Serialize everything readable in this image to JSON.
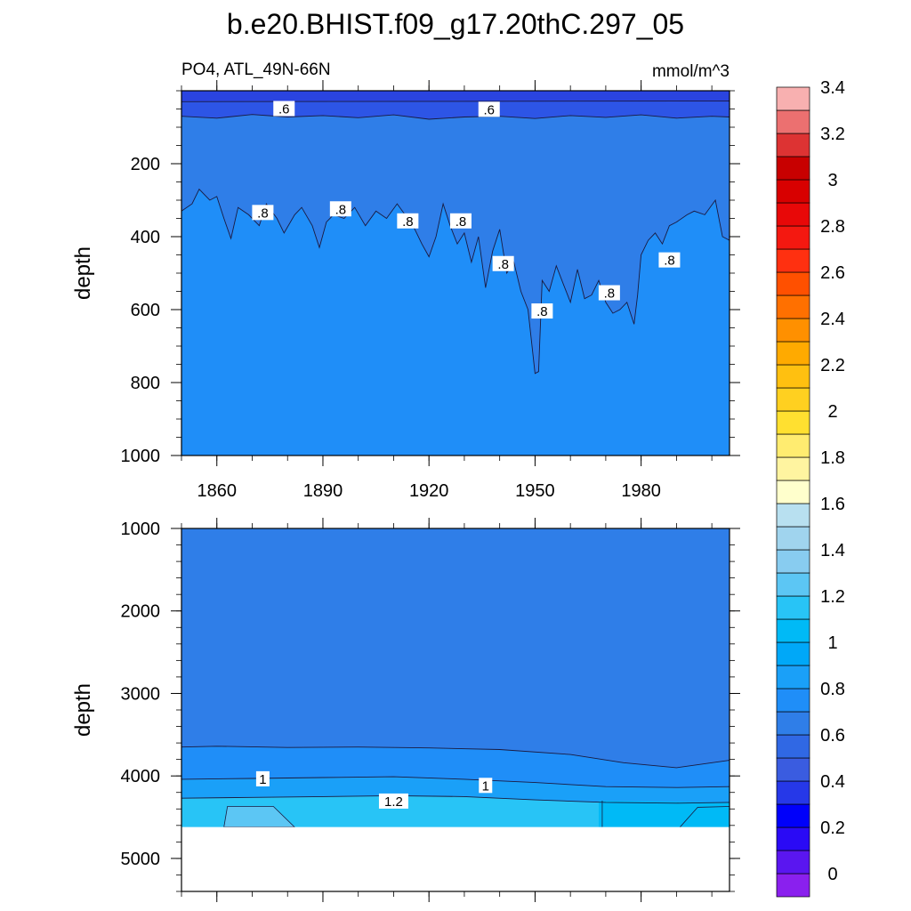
{
  "title": "b.e20.BHIST.f09_g17.20thC.297_05",
  "chart_data": {
    "type": "contour",
    "variable_label": "PO4, ATL_49N-66N",
    "units": "mmol/m^3",
    "ylabel": "depth",
    "x_ticks": [
      1860,
      1890,
      1920,
      1950,
      1980
    ],
    "xlim": [
      1850,
      2005
    ],
    "top_panel": {
      "ylim": [
        0,
        1000
      ],
      "y_ticks": [
        "200",
        "400",
        "600",
        "800",
        "1000"
      ],
      "contour_06_depths": [
        [
          1850,
          70
        ],
        [
          1860,
          75
        ],
        [
          1870,
          65
        ],
        [
          1880,
          72
        ],
        [
          1890,
          68
        ],
        [
          1900,
          74
        ],
        [
          1910,
          66
        ],
        [
          1920,
          78
        ],
        [
          1930,
          72
        ],
        [
          1940,
          70
        ],
        [
          1950,
          76
        ],
        [
          1960,
          68
        ],
        [
          1970,
          73
        ],
        [
          1980,
          66
        ],
        [
          1990,
          75
        ],
        [
          2000,
          70
        ],
        [
          2005,
          72
        ]
      ],
      "contour_08_depths": [
        [
          1850,
          330
        ],
        [
          1853,
          310
        ],
        [
          1855,
          270
        ],
        [
          1858,
          300
        ],
        [
          1860,
          290
        ],
        [
          1862,
          350
        ],
        [
          1864,
          405
        ],
        [
          1866,
          320
        ],
        [
          1869,
          340
        ],
        [
          1872,
          370
        ],
        [
          1874,
          310
        ],
        [
          1877,
          350
        ],
        [
          1879,
          390
        ],
        [
          1882,
          340
        ],
        [
          1884,
          320
        ],
        [
          1887,
          370
        ],
        [
          1889,
          430
        ],
        [
          1891,
          360
        ],
        [
          1893,
          340
        ],
        [
          1896,
          350
        ],
        [
          1899,
          320
        ],
        [
          1902,
          370
        ],
        [
          1905,
          330
        ],
        [
          1908,
          350
        ],
        [
          1911,
          310
        ],
        [
          1914,
          350
        ],
        [
          1916,
          380
        ],
        [
          1918,
          420
        ],
        [
          1920,
          455
        ],
        [
          1922,
          400
        ],
        [
          1924,
          310
        ],
        [
          1926,
          370
        ],
        [
          1928,
          420
        ],
        [
          1930,
          390
        ],
        [
          1932,
          470
        ],
        [
          1934,
          400
        ],
        [
          1936,
          540
        ],
        [
          1938,
          440
        ],
        [
          1940,
          380
        ],
        [
          1942,
          500
        ],
        [
          1944,
          470
        ],
        [
          1946,
          550
        ],
        [
          1948,
          600
        ],
        [
          1950,
          775
        ],
        [
          1951,
          770
        ],
        [
          1952,
          520
        ],
        [
          1954,
          550
        ],
        [
          1956,
          480
        ],
        [
          1958,
          530
        ],
        [
          1960,
          580
        ],
        [
          1962,
          490
        ],
        [
          1964,
          570
        ],
        [
          1966,
          560
        ],
        [
          1968,
          520
        ],
        [
          1970,
          580
        ],
        [
          1972,
          610
        ],
        [
          1974,
          600
        ],
        [
          1976,
          580
        ],
        [
          1978,
          640
        ],
        [
          1979,
          560
        ],
        [
          1980,
          450
        ],
        [
          1982,
          410
        ],
        [
          1984,
          390
        ],
        [
          1986,
          420
        ],
        [
          1988,
          370
        ],
        [
          1990,
          360
        ],
        [
          1993,
          340
        ],
        [
          1995,
          330
        ],
        [
          1998,
          340
        ],
        [
          2001,
          300
        ],
        [
          2003,
          400
        ],
        [
          2005,
          410
        ]
      ],
      "contour_labels": [
        {
          "text": ".6",
          "x": 1879,
          "y": 50
        },
        {
          "text": ".6",
          "x": 1937,
          "y": 52
        },
        {
          "text": ".8",
          "x": 1873,
          "y": 335
        },
        {
          "text": ".8",
          "x": 1895,
          "y": 325
        },
        {
          "text": ".8",
          "x": 1914,
          "y": 358
        },
        {
          "text": ".8",
          "x": 1929,
          "y": 358
        },
        {
          "text": ".8",
          "x": 1941,
          "y": 475
        },
        {
          "text": ".8",
          "x": 1952,
          "y": 605
        },
        {
          "text": ".8",
          "x": 1971,
          "y": 555
        },
        {
          "text": ".8",
          "x": 1988,
          "y": 465
        }
      ]
    },
    "bottom_panel": {
      "ylim": [
        1000,
        5400
      ],
      "y_ticks": [
        "1000",
        "2000",
        "3000",
        "4000",
        "5000"
      ],
      "seafloor_depth": 4620,
      "contour_08_depths": [
        [
          1850,
          3650
        ],
        [
          1860,
          3640
        ],
        [
          1880,
          3655
        ],
        [
          1900,
          3650
        ],
        [
          1920,
          3660
        ],
        [
          1940,
          3680
        ],
        [
          1960,
          3740
        ],
        [
          1975,
          3840
        ],
        [
          1990,
          3900
        ],
        [
          2005,
          3810
        ]
      ],
      "contour_1_depths": [
        [
          1850,
          4040
        ],
        [
          1870,
          4030
        ],
        [
          1890,
          4020
        ],
        [
          1910,
          4010
        ],
        [
          1930,
          4040
        ],
        [
          1950,
          4080
        ],
        [
          1970,
          4130
        ],
        [
          1990,
          4140
        ],
        [
          2005,
          4130
        ]
      ],
      "contour_12_depths": [
        [
          1850,
          4270
        ],
        [
          1870,
          4260
        ],
        [
          1890,
          4250
        ],
        [
          1910,
          4240
        ],
        [
          1930,
          4250
        ],
        [
          1950,
          4290
        ],
        [
          1970,
          4320
        ],
        [
          1990,
          4330
        ],
        [
          2005,
          4320
        ]
      ],
      "contour_labels": [
        {
          "text": "1",
          "x": 1873,
          "y": 4040
        },
        {
          "text": "1",
          "x": 1936,
          "y": 4120
        },
        {
          "text": "1.2",
          "x": 1910,
          "y": 4310
        }
      ]
    },
    "colorbar": {
      "labels": [
        "0",
        "0.2",
        "0.4",
        "0.6",
        "0.8",
        "1",
        "1.2",
        "1.4",
        "1.6",
        "1.8",
        "2",
        "2.2",
        "2.4",
        "2.6",
        "2.8",
        "3",
        "3.2",
        "3.4"
      ],
      "colors": [
        "#8a20ee",
        "#5a16f0",
        "#2a0af5",
        "#0000fa",
        "#2638e8",
        "#3a5ce0",
        "#3068e4",
        "#2f7ee8",
        "#1f8ef8",
        "#1aa0f8",
        "#00a8f8",
        "#00baf6",
        "#28c4f6",
        "#5cc6f4",
        "#88ccf0",
        "#a0d4ee",
        "#b8e0f0",
        "#ffffcc",
        "#fff4a0",
        "#ffec70",
        "#ffe030",
        "#ffd020",
        "#ffc010",
        "#ffaa00",
        "#ff9000",
        "#ff7000",
        "#ff5000",
        "#ff3010",
        "#f41810",
        "#e80808",
        "#d80000",
        "#c80000",
        "#dd3333",
        "#ec7070",
        "#f8b0b0"
      ]
    }
  }
}
